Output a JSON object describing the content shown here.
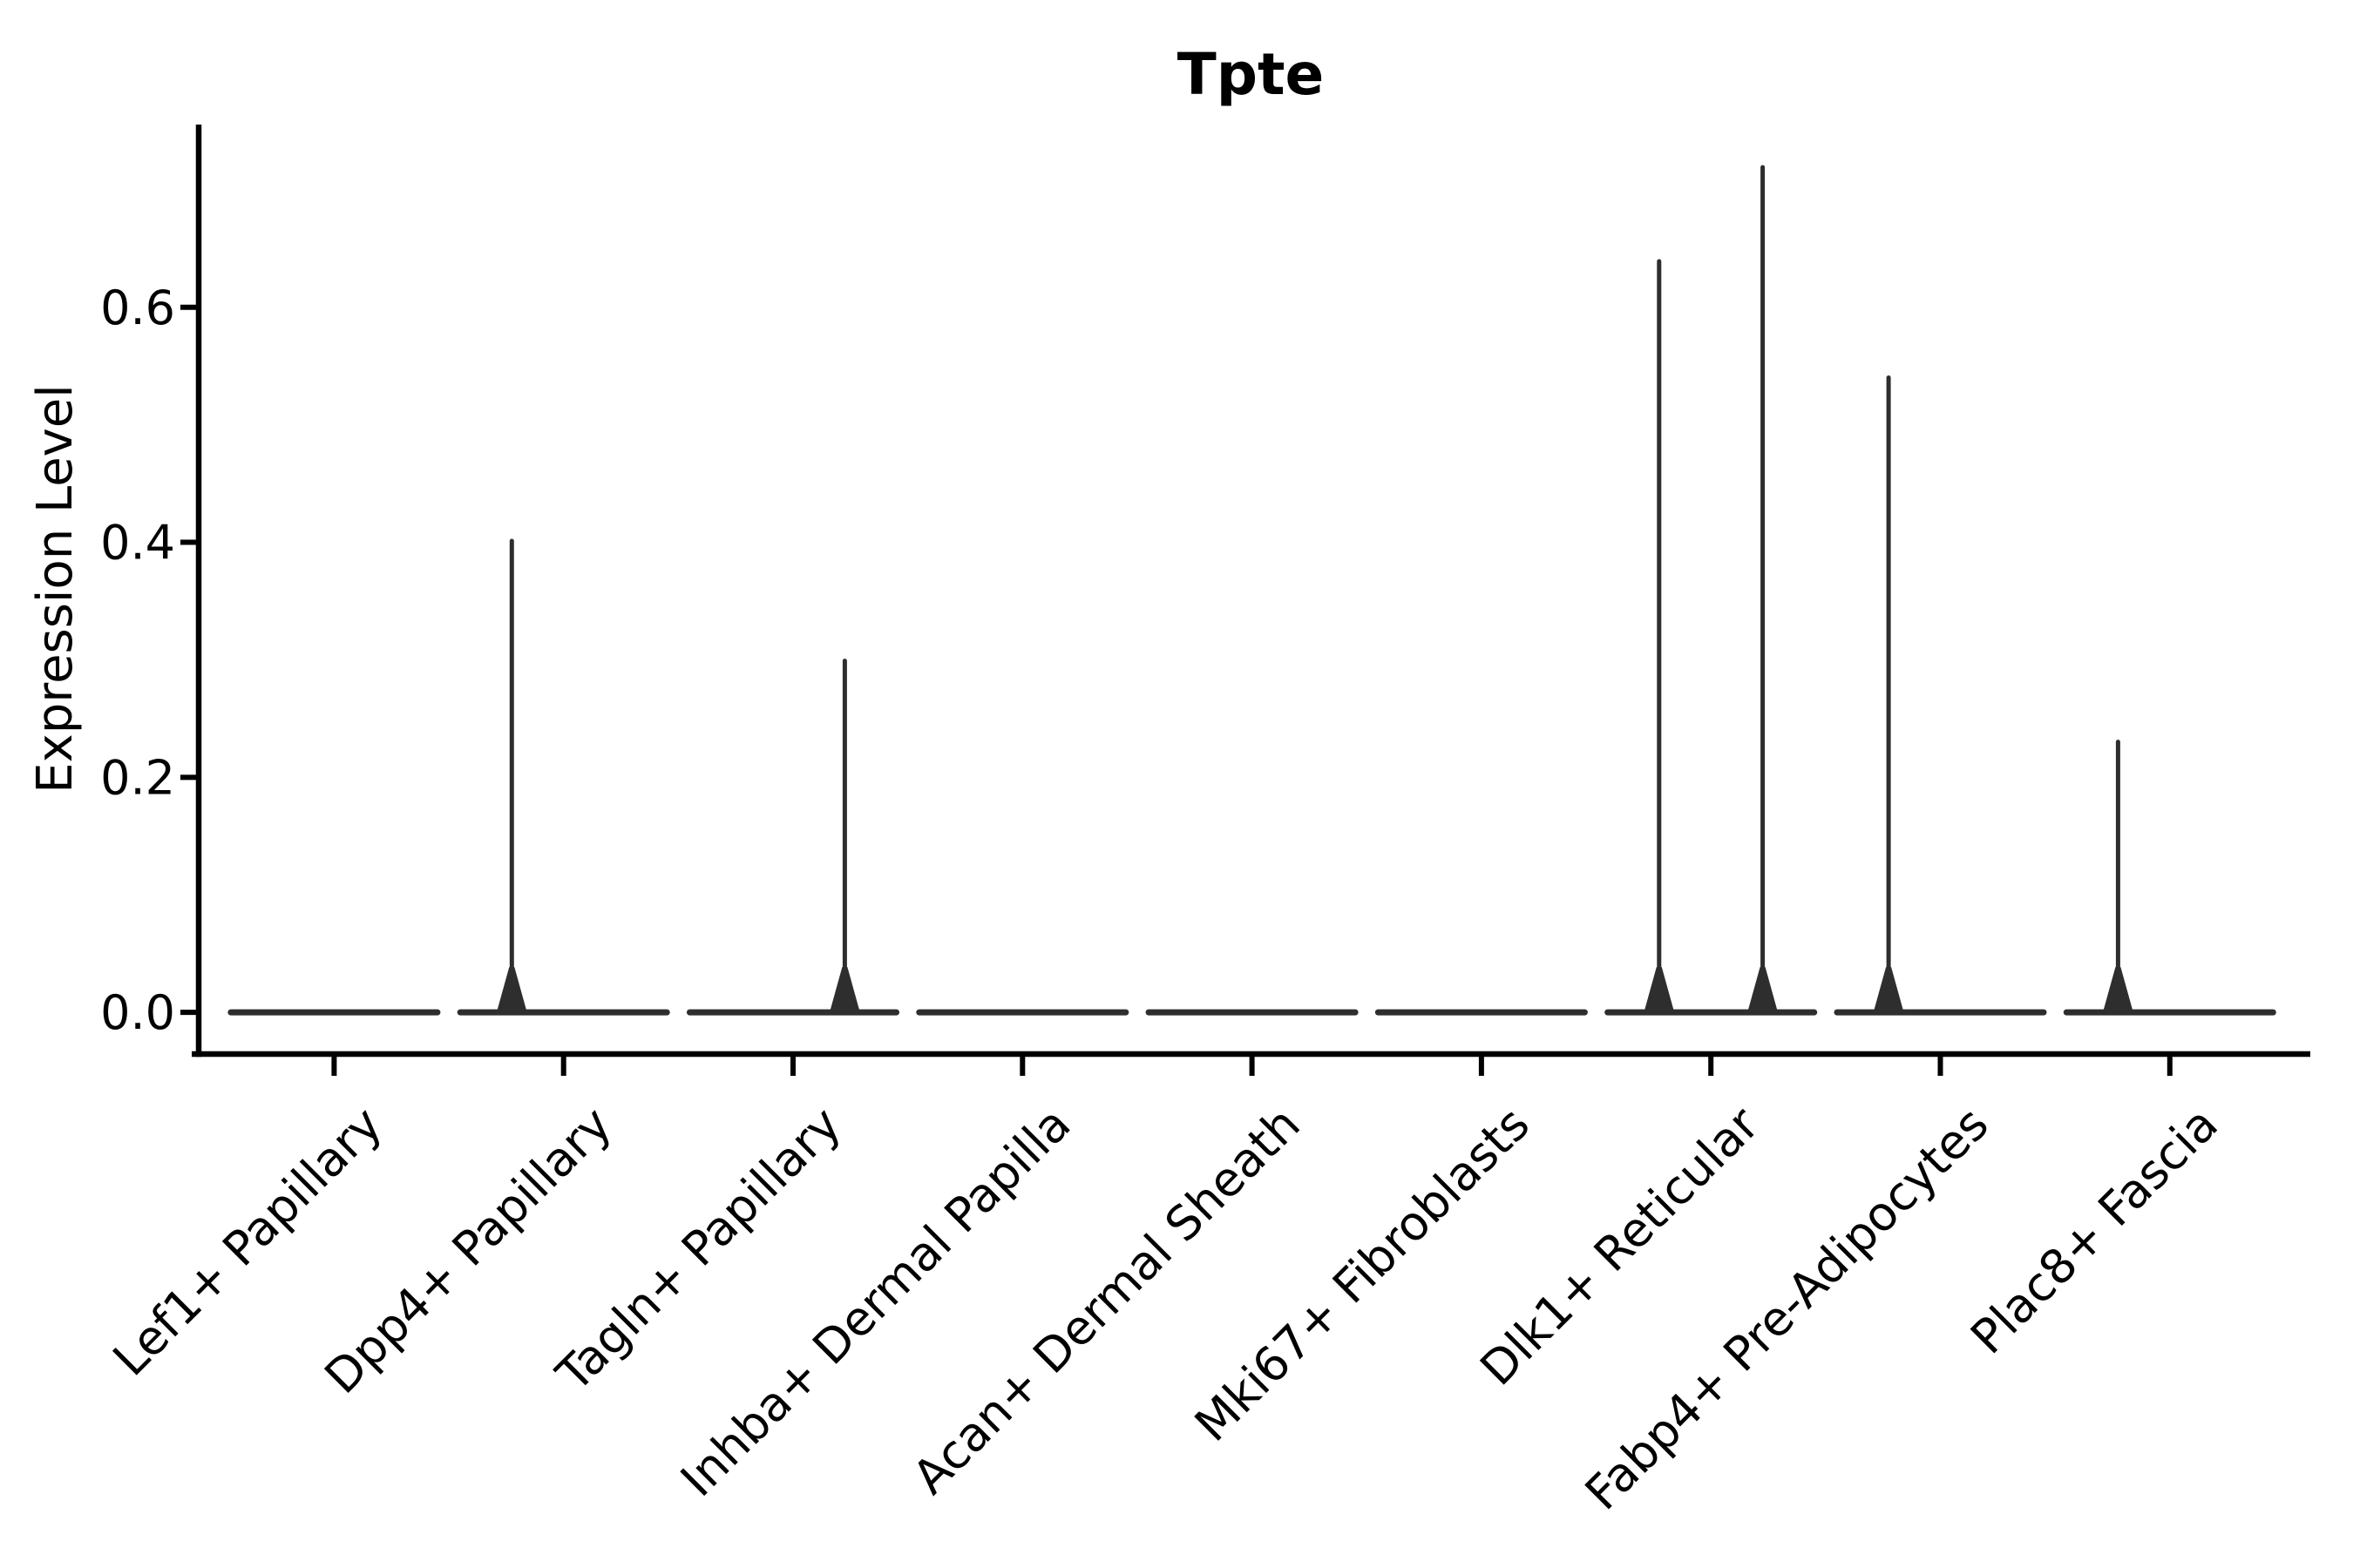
{
  "page": {
    "background": "#ffffff"
  },
  "chart_data": {
    "type": "violin",
    "title": "Tpte",
    "xlabel": "",
    "ylabel": "Expression Level",
    "categories": [
      "Lef1+ Papillary",
      "Dpp4+ Papillary",
      "Tagln+ Papillary",
      "Inhba+ Dermal Papilla",
      "Acan+ Dermal Sheath",
      "Mki67+ Fibroblasts",
      "Dlk1+ Reticular",
      "Fabp4+ Pre-Adipocytes",
      "Plac8+ Fascia"
    ],
    "ytick_labels": [
      "0.0",
      "0.2",
      "0.4",
      "0.6"
    ],
    "ytick_values": [
      0.0,
      0.2,
      0.4,
      0.6
    ],
    "ylim": [
      -0.0355,
      0.7555
    ],
    "grid": false,
    "legend": false,
    "colors": {
      "axis": "#000000",
      "text": "#000000",
      "violin": "#2e2e2e",
      "background": "#ffffff"
    },
    "violins": [
      {
        "category": "Lef1+ Papillary",
        "baseline_value": 0.0,
        "spikes": []
      },
      {
        "category": "Dpp4+ Papillary",
        "baseline_value": 0.0,
        "spikes": [
          {
            "side": "left",
            "max_value": 0.403
          }
        ]
      },
      {
        "category": "Tagln+ Papillary",
        "baseline_value": 0.0,
        "spikes": [
          {
            "side": "right",
            "max_value": 0.301
          }
        ]
      },
      {
        "category": "Inhba+ Dermal Papilla",
        "baseline_value": 0.0,
        "spikes": []
      },
      {
        "category": "Acan+ Dermal Sheath",
        "baseline_value": 0.0,
        "spikes": []
      },
      {
        "category": "Mki67+ Fibroblasts",
        "baseline_value": 0.0,
        "spikes": []
      },
      {
        "category": "Dlk1+ Reticular",
        "baseline_value": 0.0,
        "spikes": [
          {
            "side": "left",
            "max_value": 0.641
          },
          {
            "side": "right",
            "max_value": 0.721
          }
        ]
      },
      {
        "category": "Fabp4+ Pre-Adipocytes",
        "baseline_value": 0.0,
        "spikes": [
          {
            "side": "left",
            "max_value": 0.542
          }
        ]
      },
      {
        "category": "Plac8+ Fascia",
        "baseline_value": 0.0,
        "spikes": [
          {
            "side": "left",
            "max_value": 0.232
          }
        ]
      }
    ]
  }
}
